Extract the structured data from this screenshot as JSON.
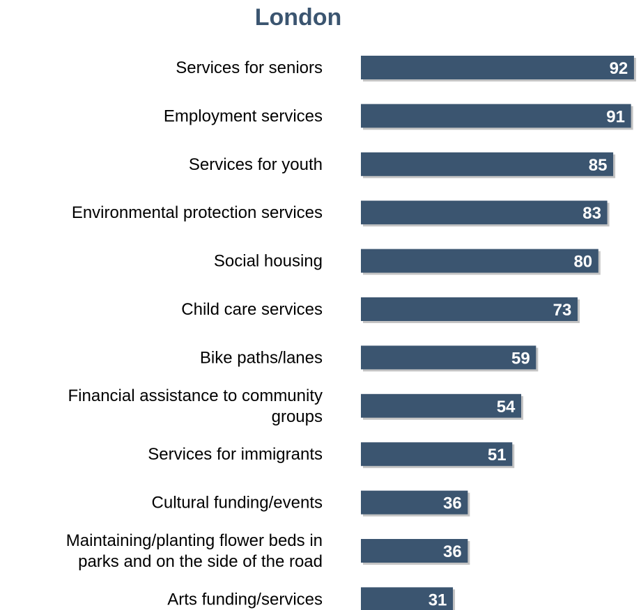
{
  "chart_data": {
    "type": "bar",
    "orientation": "horizontal",
    "title": "London",
    "categories": [
      [
        "Services for seniors"
      ],
      [
        "Employment services"
      ],
      [
        "Services for youth"
      ],
      [
        "Environmental protection services"
      ],
      [
        "Social housing"
      ],
      [
        "Child care services"
      ],
      [
        "Bike paths/lanes"
      ],
      [
        "Financial assistance to community",
        "groups"
      ],
      [
        "Services for immigrants"
      ],
      [
        "Cultural funding/events"
      ],
      [
        "Maintaining/planting flower beds in",
        "parks and on the side of the road"
      ],
      [
        "Arts funding/services"
      ]
    ],
    "values": [
      92,
      91,
      85,
      83,
      80,
      73,
      59,
      54,
      51,
      36,
      36,
      31
    ],
    "xlim": [
      0,
      100
    ],
    "grid": false,
    "legend": "none",
    "colors": {
      "title": "#3b5570",
      "bar": "#3b5570",
      "bar_shadow": "#c4c4c4",
      "value_text": "#ffffff",
      "label_text": "#000000"
    }
  }
}
